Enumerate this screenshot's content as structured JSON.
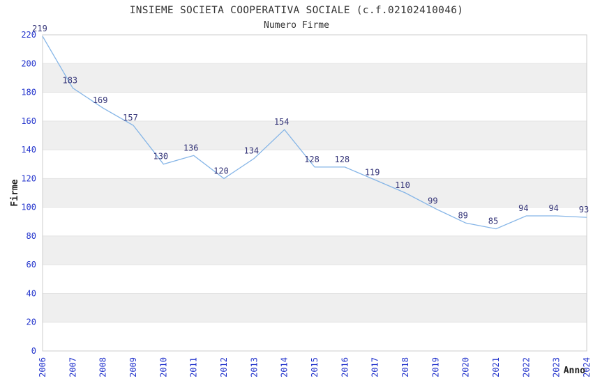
{
  "header": {
    "title": "INSIEME SOCIETA COOPERATIVA SOCIALE (c.f.02102410046)",
    "subtitle": "Numero Firme"
  },
  "chart_data": {
    "type": "line",
    "title": "INSIEME SOCIETA COOPERATIVA SOCIALE (c.f.02102410046)",
    "subtitle": "Numero Firme",
    "xlabel": "Anno",
    "ylabel": "Firme",
    "categories": [
      "2006",
      "2007",
      "2008",
      "2009",
      "2010",
      "2011",
      "2012",
      "2013",
      "2014",
      "2015",
      "2016",
      "2017",
      "2018",
      "2019",
      "2020",
      "2021",
      "2022",
      "2023",
      "2024"
    ],
    "values": [
      219,
      183,
      169,
      157,
      130,
      136,
      120,
      134,
      154,
      128,
      128,
      119,
      110,
      99,
      89,
      85,
      94,
      94,
      93
    ],
    "ylim": [
      0,
      220
    ],
    "ytick_step": 20,
    "grid": "alternating-horizontal-bands",
    "legend": "none",
    "point_labels_visible": true,
    "x_tick_rotation": -90,
    "colors": {
      "line": "#85b5e7",
      "band_gray": "#efefef",
      "band_edge": "#e3e3e3",
      "plot_border": "#cccccc",
      "tick_label_blue": "#2233cc",
      "data_label_navy": "#333377",
      "title_text": "#333333",
      "axis_title_text": "#222222",
      "background": "#ffffff"
    }
  }
}
